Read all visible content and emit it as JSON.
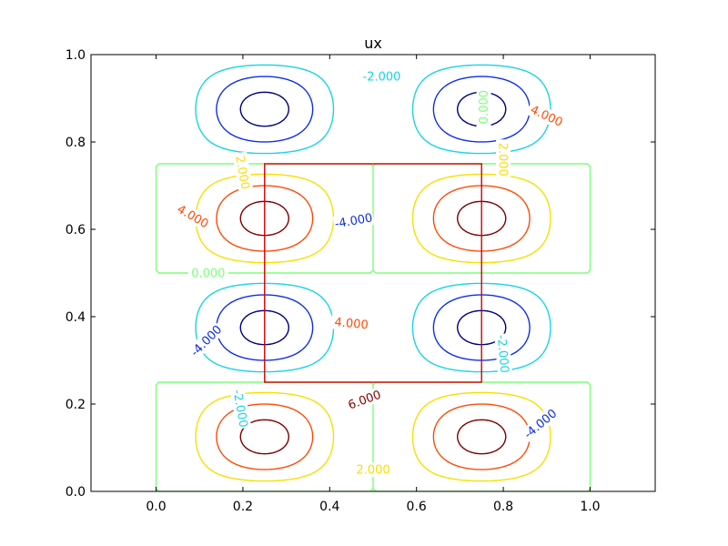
{
  "chart_data": {
    "type": "contour",
    "title": "ux",
    "xlim": [
      -0.15,
      1.15
    ],
    "ylim": [
      0.0,
      1.0
    ],
    "x_ticks": [
      0.0,
      0.2,
      0.4,
      0.6,
      0.8,
      1.0
    ],
    "x_tick_labels": [
      "0.0",
      "0.2",
      "0.4",
      "0.6",
      "0.8",
      "1.0"
    ],
    "y_ticks": [
      0.0,
      0.2,
      0.4,
      0.6,
      0.8,
      1.0
    ],
    "y_tick_labels": [
      "0.0",
      "0.2",
      "0.4",
      "0.6",
      "0.8",
      "1.0"
    ],
    "grid": false,
    "contour_levels": [
      {
        "value": -6,
        "color": "#00007f"
      },
      {
        "value": -4,
        "color": "#0d2fe8"
      },
      {
        "value": -2,
        "color": "#16d4e6"
      },
      {
        "value": 0,
        "color": "#7dff7a"
      },
      {
        "value": 2,
        "color": "#f8df00"
      },
      {
        "value": 4,
        "color": "#ff4a06"
      },
      {
        "value": 6,
        "color": "#7f0000"
      }
    ],
    "contour_labels": [
      {
        "text": "-2.000",
        "x": 0.52,
        "y": 0.95,
        "level": -2,
        "angle": 0
      },
      {
        "text": "0.000",
        "x": 0.755,
        "y": 0.88,
        "level": 0,
        "angle": 90
      },
      {
        "text": "-4.000",
        "x": 0.455,
        "y": 0.62,
        "level": -4,
        "angle": 10
      },
      {
        "text": "2.000",
        "x": 0.2,
        "y": 0.73,
        "level": 2,
        "angle": -80
      },
      {
        "text": "4.000",
        "x": 0.085,
        "y": 0.63,
        "level": 4,
        "angle": -30
      },
      {
        "text": "2.000",
        "x": 0.8,
        "y": 0.76,
        "level": 2,
        "angle": -90
      },
      {
        "text": "4.000",
        "x": 0.9,
        "y": 0.86,
        "level": 4,
        "angle": -25
      },
      {
        "text": "0.000",
        "x": 0.12,
        "y": 0.5,
        "level": 0,
        "angle": 0
      },
      {
        "text": "4.000",
        "x": 0.45,
        "y": 0.385,
        "level": 4,
        "angle": -5
      },
      {
        "text": "-4.000",
        "x": 0.115,
        "y": 0.345,
        "level": -4,
        "angle": 45
      },
      {
        "text": "-2.000",
        "x": 0.8,
        "y": 0.315,
        "level": -2,
        "angle": -85
      },
      {
        "text": "6.000",
        "x": 0.48,
        "y": 0.21,
        "level": 6,
        "angle": 20
      },
      {
        "text": "-2.000",
        "x": 0.195,
        "y": 0.19,
        "level": -2,
        "angle": -80
      },
      {
        "text": "-4.000",
        "x": 0.885,
        "y": 0.155,
        "level": -4,
        "angle": 40
      },
      {
        "text": "2.000",
        "x": 0.5,
        "y": 0.05,
        "level": 2,
        "angle": 0
      }
    ],
    "overlay_rectangle": {
      "x0": 0.25,
      "y0": 0.25,
      "x1": 0.75,
      "y1": 0.75,
      "color": "#d40000"
    }
  }
}
